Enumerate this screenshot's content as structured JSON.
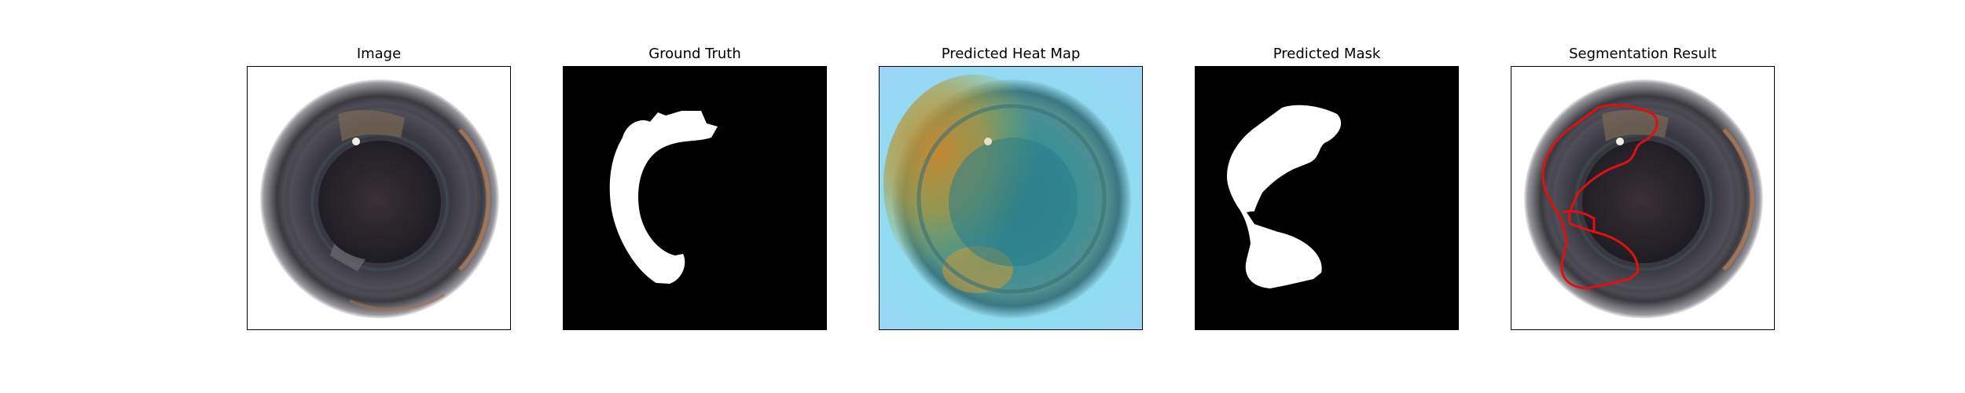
{
  "panels": [
    {
      "title": "Image"
    },
    {
      "title": "Ground Truth"
    },
    {
      "title": "Predicted Heat Map"
    },
    {
      "title": "Predicted Mask"
    },
    {
      "title": "Segmentation Result"
    }
  ],
  "colors": {
    "background": "#ffffff",
    "mask_background": "#000000",
    "mask_foreground": "#ffffff",
    "contour": "#e01010",
    "heat_low": "#8fd8f0",
    "heat_high": "#c8a43a"
  }
}
